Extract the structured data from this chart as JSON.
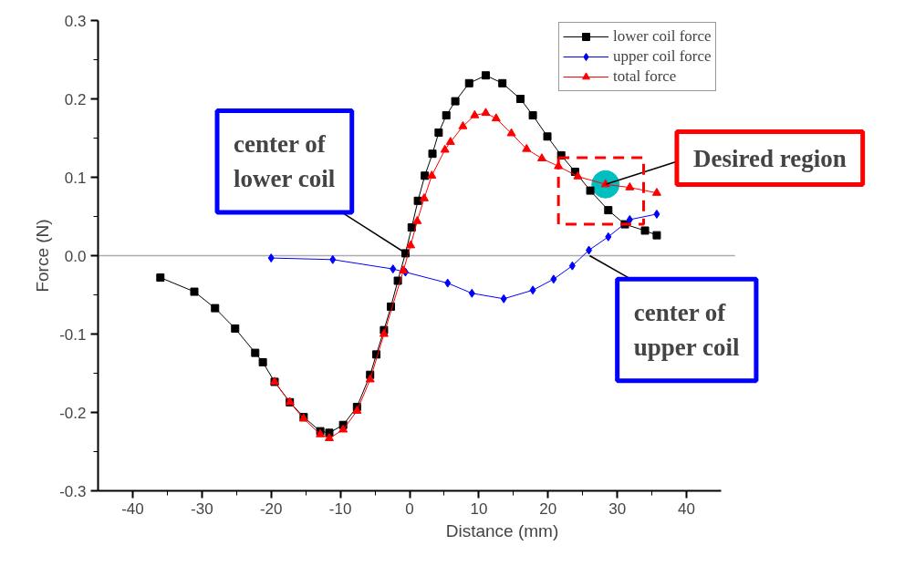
{
  "chart_data": {
    "type": "line",
    "xlabel": "Distance (mm)",
    "ylabel": "Force (N)",
    "xlim": [
      -45,
      45
    ],
    "ylim": [
      -0.3,
      0.3
    ],
    "xticks": [
      -40,
      -30,
      -20,
      -10,
      0,
      10,
      20,
      30,
      40
    ],
    "yticks": [
      {
        "value": -0.3,
        "label": "-0.3"
      },
      {
        "value": -0.2,
        "label": "-0.2"
      },
      {
        "value": -0.1,
        "label": "-0.1"
      },
      {
        "value": 0,
        "label": "0.0"
      },
      {
        "value": 0.1,
        "label": "0.1"
      },
      {
        "value": 0.2,
        "label": "0.2"
      },
      {
        "value": 0.3,
        "label": "0.3"
      }
    ],
    "grid": false,
    "legend": "top right",
    "line_style": "solid",
    "series": [
      {
        "name": "lower coil force",
        "color": "#000000",
        "marker": "square",
        "x": [
          -36.0,
          -31.1,
          -28.1,
          -25.2,
          -22.3,
          -21.2,
          -19.5,
          -17.3,
          -15.3,
          -12.9,
          -11.6,
          -9.6,
          -7.6,
          -5.7,
          -4.8,
          -3.7,
          -2.7,
          -1.7,
          -0.6,
          0.3,
          1.2,
          2.2,
          3.3,
          4.2,
          5.3,
          6.6,
          8.6,
          11.0,
          13.4,
          16.0,
          17.8,
          19.9,
          21.9,
          23.9,
          26.1,
          28.7,
          31.1,
          34.0,
          35.7
        ],
        "values": [
          -0.028,
          -0.046,
          -0.067,
          -0.093,
          -0.124,
          -0.136,
          -0.161,
          -0.187,
          -0.206,
          -0.224,
          -0.226,
          -0.216,
          -0.193,
          -0.152,
          -0.126,
          -0.095,
          -0.065,
          -0.032,
          0.003,
          0.036,
          0.07,
          0.102,
          0.13,
          0.157,
          0.179,
          0.197,
          0.22,
          0.23,
          0.22,
          0.2,
          0.179,
          0.152,
          0.128,
          0.107,
          0.083,
          0.058,
          0.04,
          0.032,
          0.026
        ]
      },
      {
        "name": "upper coil force",
        "color": "#0000ff",
        "marker": "diamond",
        "x": [
          -20.0,
          -11.1,
          -2.4,
          -0.6,
          5.5,
          9.0,
          13.6,
          17.8,
          20.8,
          23.5,
          25.9,
          28.7,
          31.8,
          35.7
        ],
        "values": [
          -0.003,
          -0.005,
          -0.017,
          -0.021,
          -0.035,
          -0.048,
          -0.055,
          -0.044,
          -0.03,
          -0.013,
          0.007,
          0.024,
          0.046,
          0.053
        ]
      },
      {
        "name": "total force",
        "color": "#ff0000",
        "marker": "triangle",
        "x": [
          -19.5,
          -17.3,
          -15.3,
          -12.9,
          -11.6,
          -9.6,
          -7.6,
          -5.7,
          -3.7,
          -0.9,
          0.15,
          1.1,
          2.1,
          3.2,
          5.1,
          5.9,
          7.7,
          9.4,
          11.0,
          12.5,
          14.7,
          16.9,
          19.1,
          21.5,
          24.3,
          28.3,
          31.8,
          35.7
        ],
        "values": [
          -0.161,
          -0.187,
          -0.208,
          -0.228,
          -0.233,
          -0.222,
          -0.198,
          -0.158,
          -0.1,
          -0.019,
          0.013,
          0.044,
          0.073,
          0.102,
          0.135,
          0.145,
          0.165,
          0.179,
          0.182,
          0.175,
          0.156,
          0.136,
          0.124,
          0.114,
          0.101,
          0.091,
          0.087,
          0.08
        ]
      }
    ],
    "ref_lines": [
      {
        "axis": "y",
        "value": 0,
        "color": "#aaaaaa"
      }
    ],
    "annotations": [
      {
        "text": "center of\nlower coil",
        "x": 0,
        "y": 0
      },
      {
        "text": "center of\nupper coil",
        "x": 26,
        "y": 0
      },
      {
        "text": "Desired region",
        "x": 28.3,
        "y": 0.091
      }
    ]
  }
}
